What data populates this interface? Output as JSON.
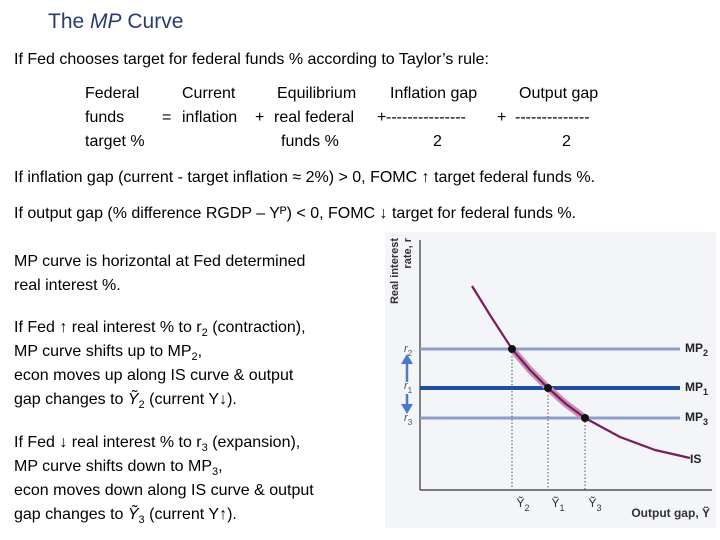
{
  "title": [
    {
      "t": "The "
    },
    {
      "t": "MP",
      "style": "italic"
    },
    {
      "t": " Curve"
    }
  ],
  "intro": "If Fed chooses target for federal funds % according to Taylor’s rule:",
  "equation": {
    "terms": [
      [
        "Federal",
        "funds",
        "target %"
      ],
      [
        "Current",
        "inflation"
      ],
      [
        "Equilibrium",
        "real federal",
        "funds %"
      ],
      [
        "Inflation gap",
        "---------------",
        "2"
      ],
      [
        "Output gap",
        "--------------",
        "2"
      ]
    ],
    "operators": [
      "=",
      "+",
      "+",
      "+"
    ]
  },
  "rules": [
    "If inflation gap (current - target inflation ≈ 2%) > 0, FOMC ↑ target federal funds %.",
    "If output gap (% difference RGDP – Yᴾ) < 0, FOMC ↓ target for federal funds %."
  ],
  "paragraphs": [
    [
      [
        {
          "t": "MP curve is horizontal at Fed determined"
        }
      ],
      [
        {
          "t": "real interest %."
        }
      ]
    ],
    [
      [
        {
          "t": "If Fed ↑ real interest % to r"
        },
        {
          "t": "2",
          "style": "sub"
        },
        {
          "t": " (contraction),"
        }
      ],
      [
        {
          "t": "MP curve shifts up to MP"
        },
        {
          "t": "2",
          "style": "sub"
        },
        {
          "t": ","
        }
      ],
      [
        {
          "t": "econ moves up along IS curve & output"
        }
      ],
      [
        {
          "t": "gap changes to "
        },
        {
          "t": "Ỹ",
          "style": "italic"
        },
        {
          "t": "2",
          "style": "sub"
        },
        {
          "t": " (current Y↓)."
        }
      ]
    ],
    [
      [
        {
          "t": "If Fed ↓ real interest % to r"
        },
        {
          "t": "3",
          "style": "sub"
        },
        {
          "t": " (expansion),"
        }
      ],
      [
        {
          "t": "MP curve shifts down to MP"
        },
        {
          "t": "3",
          "style": "sub"
        },
        {
          "t": ","
        }
      ],
      [
        {
          "t": "econ moves down along IS curve & output"
        }
      ],
      [
        {
          "t": "gap changes to "
        },
        {
          "t": "Ỹ",
          "style": "italic"
        },
        {
          "t": "3",
          "style": "sub"
        },
        {
          "t": " (current Y↑)."
        }
      ]
    ]
  ],
  "graph": {
    "y_axis_label": [
      "Real interest",
      "rate, r"
    ],
    "x_axis_label": [
      {
        "t": "Output gap, "
      },
      {
        "t": "Ỹ"
      }
    ],
    "rates": [
      [
        {
          "t": "r",
          "style": "italic"
        },
        {
          "t": "2",
          "style": "sub"
        }
      ],
      [
        {
          "t": "r",
          "style": "italic"
        },
        {
          "t": "1",
          "style": "sub"
        }
      ],
      [
        {
          "t": "r",
          "style": "italic"
        },
        {
          "t": "3",
          "style": "sub"
        }
      ]
    ],
    "mp_labels": [
      [
        {
          "t": "MP"
        },
        {
          "t": "2",
          "style": "sub"
        }
      ],
      [
        {
          "t": "MP"
        },
        {
          "t": "1",
          "style": "sub"
        }
      ],
      [
        {
          "t": "MP"
        },
        {
          "t": "3",
          "style": "sub"
        }
      ]
    ],
    "is_label": "IS",
    "gaps": [
      [
        {
          "t": "Ỹ"
        },
        {
          "t": "2",
          "style": "sub"
        }
      ],
      [
        {
          "t": "Ỹ"
        },
        {
          "t": "1",
          "style": "sub"
        }
      ],
      [
        {
          "t": "Ỹ"
        },
        {
          "t": "3",
          "style": "sub"
        }
      ]
    ]
  }
}
